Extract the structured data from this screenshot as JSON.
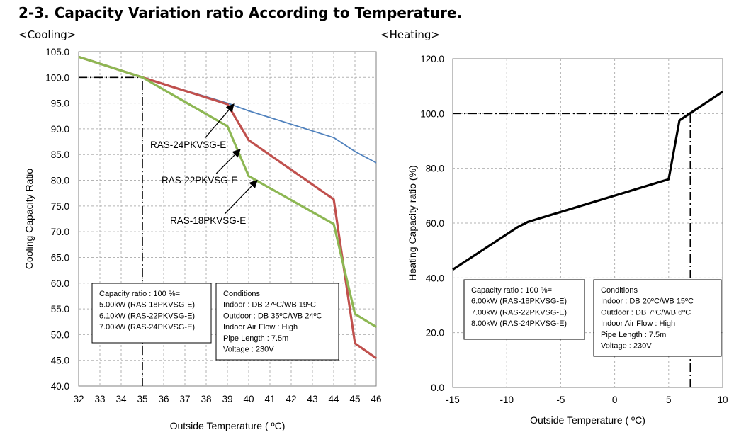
{
  "page": {
    "title": "2-3. Capacity Variation ratio According to Temperature.",
    "cooling_heading": "<Cooling>",
    "heating_heading": "<Heating>"
  },
  "chart_data": [
    {
      "type": "line",
      "id": "cooling",
      "xlabel": "Outside Temperature ( ºC)",
      "ylabel": "Cooling Capacity Ratio",
      "xlim": [
        32,
        46
      ],
      "ylim": [
        40,
        105
      ],
      "x_ticks": [
        32,
        33,
        34,
        35,
        36,
        37,
        38,
        39,
        40,
        41,
        42,
        43,
        44,
        45,
        46
      ],
      "y_ticks": [
        40,
        45,
        50,
        55,
        60,
        65,
        70,
        75,
        80,
        85,
        90,
        95,
        100,
        105
      ],
      "tick_labels_x": [
        "32",
        "33",
        "34",
        "35",
        "36",
        "37",
        "38",
        "39",
        "40",
        "41",
        "42",
        "43",
        "44",
        "45",
        "46"
      ],
      "tick_labels_y": [
        "40.0",
        "45.0",
        "50.0",
        "55.0",
        "60.0",
        "65.0",
        "70.0",
        "75.0",
        "80.0",
        "85.0",
        "90.0",
        "95.0",
        "100.0",
        "105.0"
      ],
      "grid": true,
      "series": [
        {
          "name": "RAS-24PKVSG-E",
          "color": "#4f81bd",
          "x": [
            32,
            35,
            39,
            40,
            44,
            45,
            46
          ],
          "y": [
            104,
            100,
            95,
            93.5,
            88.3,
            85.6,
            83.4
          ]
        },
        {
          "name": "RAS-22PKVSG-E",
          "color": "#c0504d",
          "x": [
            32,
            35,
            39,
            40,
            44,
            45,
            46
          ],
          "y": [
            104,
            100,
            94.8,
            87.8,
            76.3,
            48.3,
            45.4
          ]
        },
        {
          "name": "RAS-18PKVSG-E",
          "color": "#8db753",
          "x": [
            32,
            35,
            39,
            40,
            44,
            45,
            46
          ],
          "y": [
            104,
            100,
            90.5,
            80.8,
            71.5,
            54,
            51.5
          ]
        }
      ],
      "reference_lines": [
        {
          "kind": "horizontal",
          "y": 100,
          "from_x": 32,
          "to_x": 35
        },
        {
          "kind": "vertical",
          "x": 35,
          "from_y": 40,
          "to_y": 100
        }
      ],
      "annotations": [
        {
          "text": "RAS-24PKVSG-E",
          "points_to": [
            39.3,
            94.8
          ]
        },
        {
          "text": "RAS-22PKVSG-E",
          "points_to": [
            39.6,
            86.0
          ]
        },
        {
          "text": "RAS-18PKVSG-E",
          "points_to": [
            40.4,
            80.0
          ]
        }
      ],
      "note_boxes": [
        {
          "lines": [
            "Capacity ratio : 100 %=",
            "5.00kW (RAS-18PKVSG-E)",
            "6.10kW (RAS-22PKVSG-E)",
            "7.00kW (RAS-24PKVSG-E)"
          ]
        },
        {
          "lines": [
            "Conditions",
            "Indoor : DB 27ºC/WB 19ºC",
            "Outdoor : DB 35ºC/WB 24ºC",
            "Indoor Air Flow : High",
            "Pipe Length : 7.5m",
            "Voltage : 230V"
          ]
        }
      ]
    },
    {
      "type": "line",
      "id": "heating",
      "xlabel": "Outside Temperature ( ºC)",
      "ylabel": "Heating Capacity ratio (%)",
      "xlim": [
        -15,
        10
      ],
      "ylim": [
        0,
        120
      ],
      "x_ticks": [
        -15,
        -10,
        -5,
        0,
        5,
        10
      ],
      "y_ticks": [
        0,
        20,
        40,
        60,
        80,
        100,
        120
      ],
      "tick_labels_x": [
        "-15",
        "-10",
        "-5",
        "0",
        "5",
        "10"
      ],
      "tick_labels_y": [
        "0.0",
        "20.0",
        "40.0",
        "60.0",
        "80.0",
        "100.0",
        "120.0"
      ],
      "grid": true,
      "series": [
        {
          "name": "",
          "color": "#000000",
          "x": [
            -15,
            -9,
            -8,
            5,
            6,
            10
          ],
          "y": [
            43,
            58.5,
            60.5,
            76,
            97.5,
            108
          ]
        }
      ],
      "reference_lines": [
        {
          "kind": "horizontal",
          "y": 100,
          "from_x": -15,
          "to_x": 7
        },
        {
          "kind": "vertical",
          "x": 7,
          "from_y": 0,
          "to_y": 100
        }
      ],
      "note_boxes": [
        {
          "lines": [
            "Capacity ratio : 100 %=",
            "6.00kW (RAS-18PKVSG-E)",
            "7.00kW (RAS-22PKVSG-E)",
            "8.00kW (RAS-24PKVSG-E)"
          ]
        },
        {
          "lines": [
            "Conditions",
            "Indoor : DB 20ºC/WB 15ºC",
            "Outdoor : DB 7ºC/WB 6ºC",
            "Indoor Air Flow : High",
            "Pipe Length : 7.5m",
            "Voltage : 230V"
          ]
        }
      ]
    }
  ]
}
